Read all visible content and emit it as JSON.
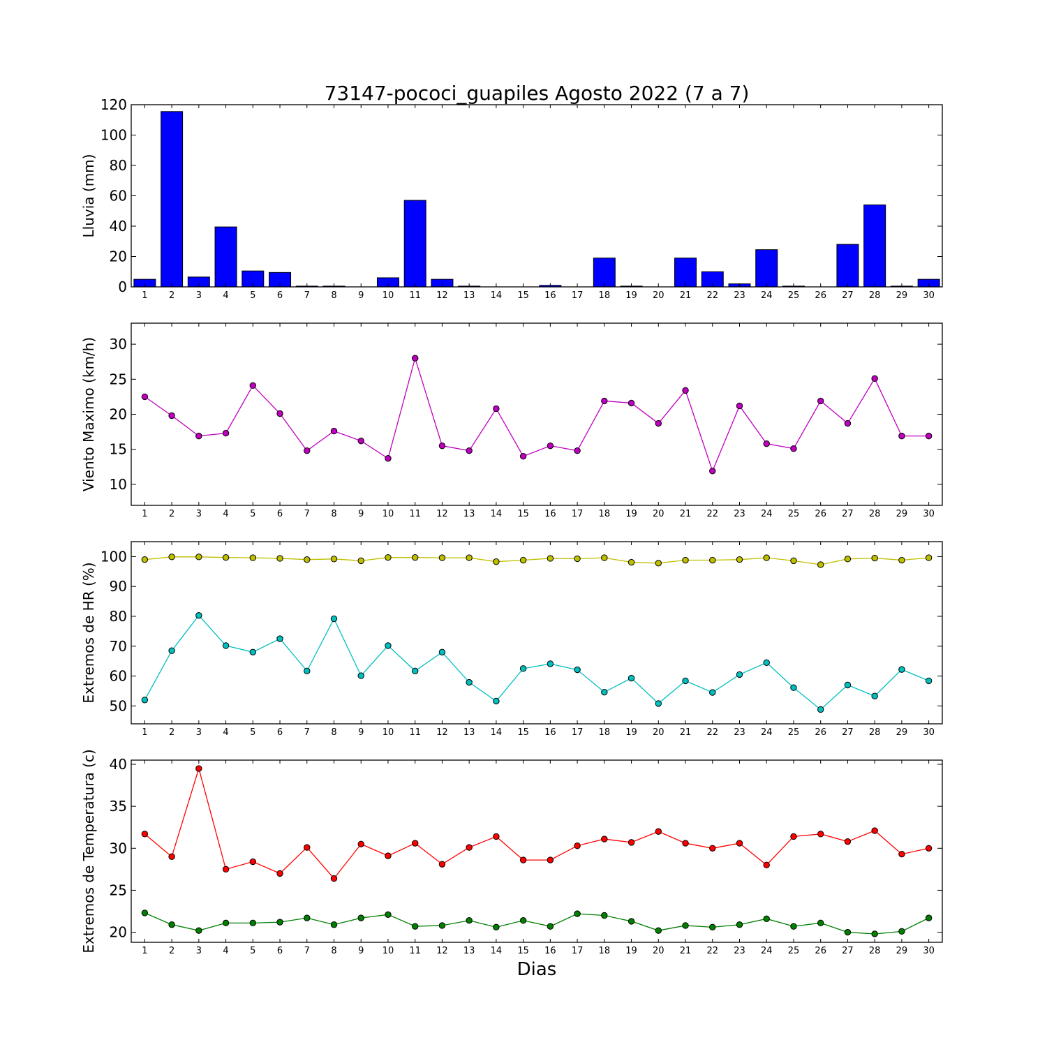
{
  "title": "73147-pococi_guapiles Agosto 2022  (7 a 7)",
  "xlabel": "Dias",
  "days": [
    1,
    2,
    3,
    4,
    5,
    6,
    7,
    8,
    9,
    10,
    11,
    12,
    13,
    14,
    15,
    16,
    17,
    18,
    19,
    20,
    21,
    22,
    23,
    24,
    25,
    26,
    27,
    28,
    29,
    30
  ],
  "chart_data": [
    {
      "type": "bar",
      "ylabel": "Lluvia (mm)",
      "ylim": [
        0,
        120
      ],
      "yticks": [
        0,
        20,
        40,
        60,
        80,
        100,
        120
      ],
      "grid": false,
      "series": [
        {
          "color": "#0000ff",
          "values": [
            5.0,
            115.5,
            6.5,
            39.5,
            10.5,
            9.5,
            0.5,
            0.5,
            0.0,
            6.0,
            57.0,
            5.0,
            0.5,
            0.0,
            0.0,
            1.0,
            0.0,
            19.0,
            0.5,
            0.0,
            19.0,
            10.0,
            2.0,
            24.5,
            0.5,
            0.0,
            28.0,
            54.0,
            0.5,
            5.0
          ]
        }
      ]
    },
    {
      "type": "line",
      "ylabel": "Viento Maximo (km/h)",
      "ylim": [
        7,
        33
      ],
      "yticks": [
        10,
        15,
        20,
        25,
        30
      ],
      "grid": false,
      "series": [
        {
          "color": "#bf00bf",
          "values": [
            22.5,
            19.8,
            16.9,
            17.3,
            24.1,
            20.1,
            14.8,
            17.6,
            16.2,
            13.7,
            28.0,
            15.5,
            14.8,
            20.8,
            14.0,
            15.5,
            14.8,
            21.9,
            21.6,
            18.7,
            23.4,
            11.9,
            21.2,
            15.8,
            15.1,
            21.9,
            18.7,
            25.1,
            16.9,
            16.9
          ]
        }
      ]
    },
    {
      "type": "line",
      "ylabel": "Extremos de HR (%)",
      "ylim": [
        44,
        105
      ],
      "yticks": [
        50,
        60,
        70,
        80,
        90,
        100
      ],
      "grid": false,
      "series": [
        {
          "color": "#bfbf00",
          "values": [
            99.0,
            99.9,
            99.9,
            99.7,
            99.6,
            99.4,
            99.0,
            99.2,
            98.6,
            99.7,
            99.7,
            99.6,
            99.6,
            98.3,
            98.8,
            99.4,
            99.3,
            99.6,
            98.1,
            97.8,
            98.8,
            98.8,
            99.0,
            99.6,
            98.6,
            97.3,
            99.2,
            99.5,
            98.8,
            99.6
          ]
        },
        {
          "color": "#00bfbf",
          "values": [
            52.0,
            68.5,
            80.3,
            70.2,
            68.0,
            72.5,
            61.7,
            79.2,
            60.1,
            70.2,
            61.7,
            68.0,
            57.9,
            51.6,
            62.5,
            64.1,
            62.1,
            54.6,
            59.3,
            50.8,
            58.4,
            54.5,
            60.5,
            64.5,
            56.1,
            48.8,
            57.0,
            53.3,
            62.2,
            58.4
          ]
        }
      ]
    },
    {
      "type": "line",
      "ylabel": "Extremos de Temperatura (c)",
      "ylim": [
        18.8,
        40.5
      ],
      "yticks": [
        20,
        25,
        30,
        35,
        40
      ],
      "grid": false,
      "series": [
        {
          "color": "#ff0000",
          "values": [
            31.7,
            29.0,
            39.5,
            27.5,
            28.4,
            27.0,
            30.1,
            26.4,
            30.5,
            29.1,
            30.6,
            28.1,
            30.1,
            31.4,
            28.6,
            28.6,
            30.3,
            31.1,
            30.7,
            32.0,
            30.6,
            30.0,
            30.6,
            28.0,
            31.4,
            31.7,
            30.8,
            32.1,
            29.3,
            30.0
          ]
        },
        {
          "color": "#007f00",
          "values": [
            22.3,
            20.9,
            20.2,
            21.1,
            21.1,
            21.2,
            21.7,
            20.9,
            21.7,
            22.1,
            20.7,
            20.8,
            21.4,
            20.6,
            21.4,
            20.7,
            22.2,
            22.0,
            21.3,
            20.2,
            20.8,
            20.6,
            20.9,
            21.6,
            20.7,
            21.1,
            20.0,
            19.8,
            20.1,
            21.7
          ]
        }
      ]
    }
  ]
}
